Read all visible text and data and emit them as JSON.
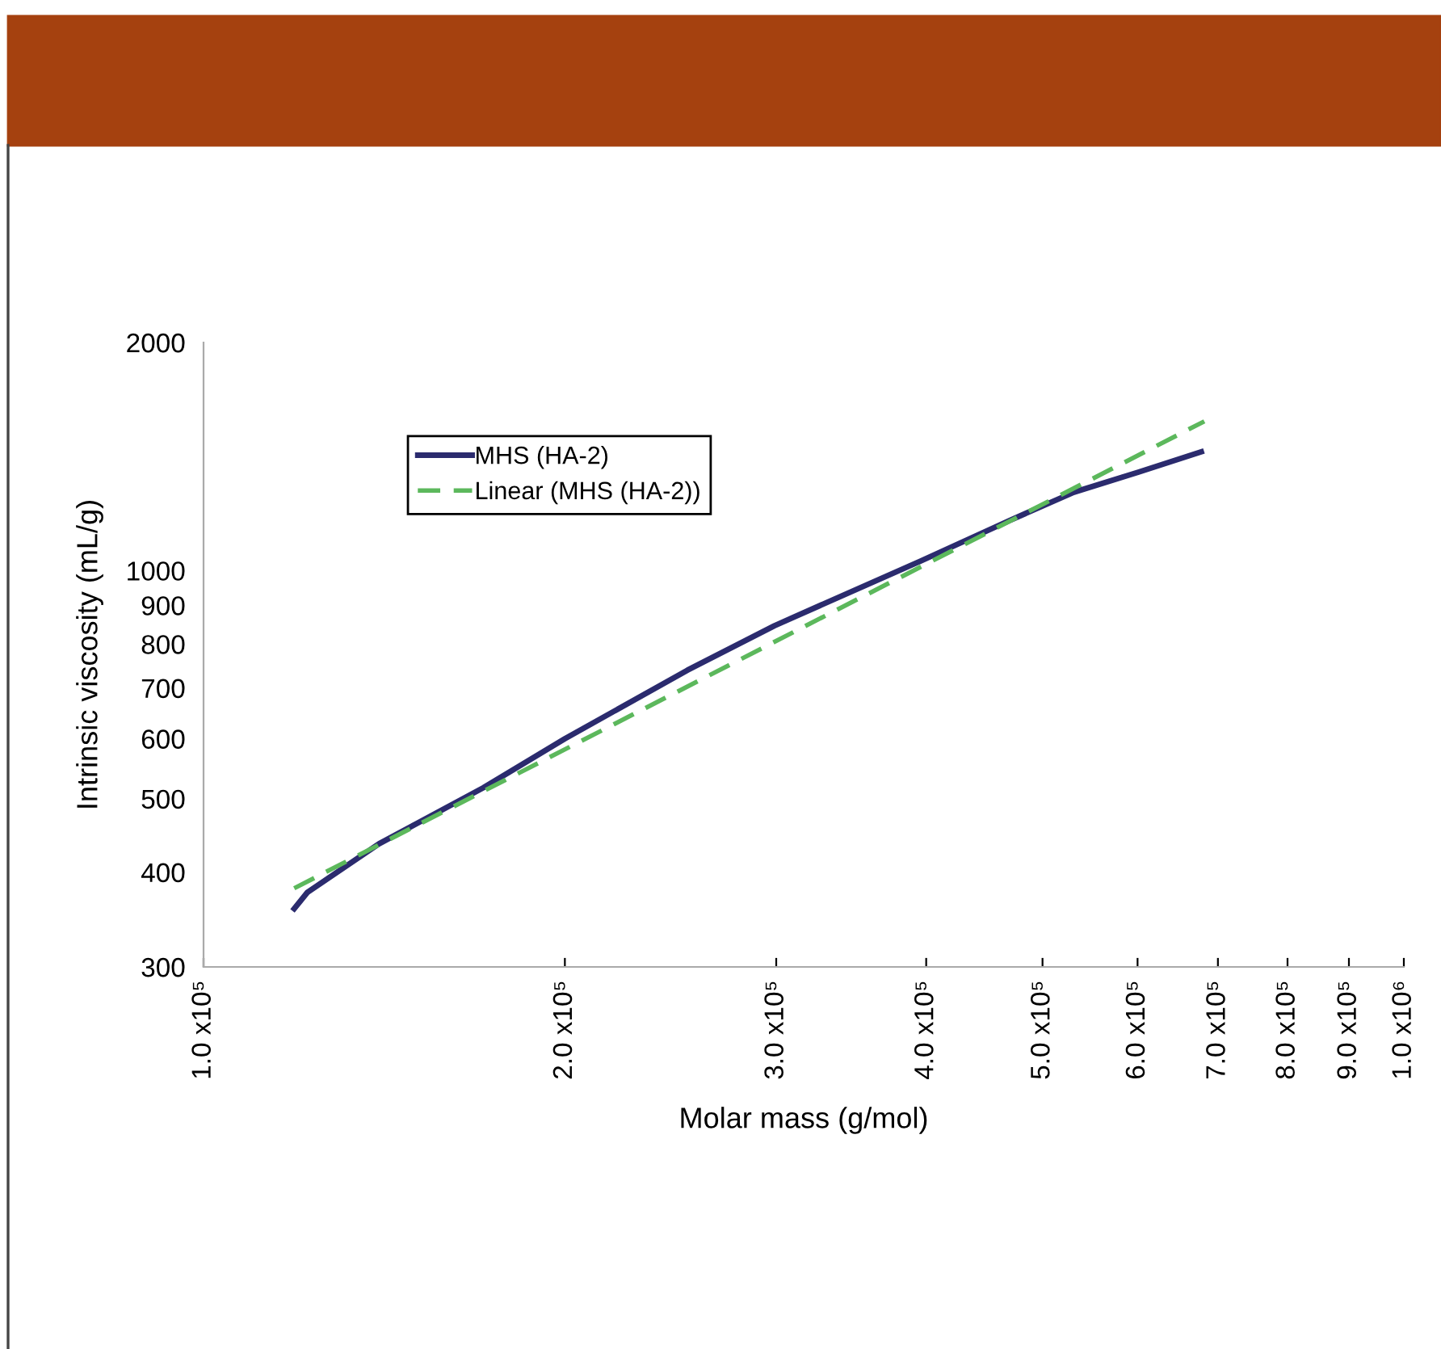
{
  "chart_data": {
    "type": "line",
    "xlabel": "Molar mass (g/mol)",
    "ylabel": "Intrinsic viscosity (mL/g)",
    "log": "xy",
    "xlim": [
      100000,
      1000000
    ],
    "ylim": [
      300,
      2000
    ],
    "xticks": [
      {
        "value": 100000,
        "label": "1.0 x10⁵"
      },
      {
        "value": 200000,
        "label": "2.0 x10⁵"
      },
      {
        "value": 300000,
        "label": "3.0 x10⁵"
      },
      {
        "value": 400000,
        "label": "4.0 x10⁵"
      },
      {
        "value": 500000,
        "label": "5.0 x10⁵"
      },
      {
        "value": 600000,
        "label": "6.0 x10⁵"
      },
      {
        "value": 700000,
        "label": "7.0 x10⁵"
      },
      {
        "value": 800000,
        "label": "8.0 x10⁵"
      },
      {
        "value": 900000,
        "label": "9.0 x10⁵"
      },
      {
        "value": 1000000,
        "label": "1.0 x10⁶"
      }
    ],
    "yticks": [
      300,
      400,
      500,
      600,
      700,
      800,
      900,
      1000,
      2000
    ],
    "grid": false,
    "legend": "top left",
    "marker": "none",
    "series": [
      {
        "name": "MHS (HA-2)",
        "color": "#2b2b6e",
        "line_style": "solid",
        "x": [
          119000,
          122000,
          140000,
          171000,
          200000,
          253000,
          299000,
          396000,
          469000,
          531000,
          601000,
          678000
        ],
        "values": [
          358,
          376,
          436,
          517,
          600,
          739,
          846,
          1030,
          1164,
          1269,
          1349,
          1435
        ]
      },
      {
        "name": "Linear (MHS (HA-2))",
        "color": "#5cb85c",
        "line_style": "dashed",
        "x": [
          119000,
          682000
        ],
        "values": [
          381,
          1574
        ]
      }
    ]
  }
}
